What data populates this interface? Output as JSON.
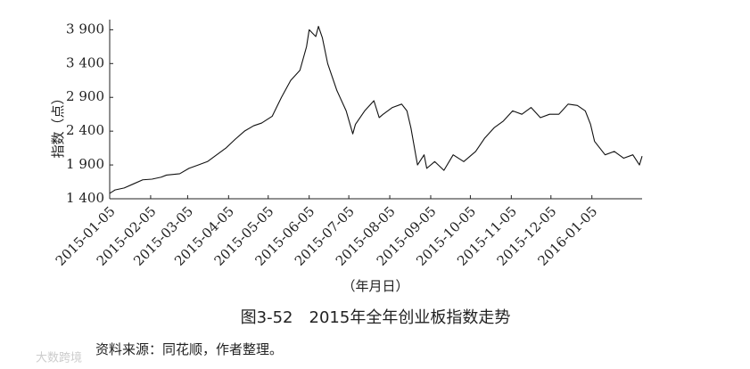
{
  "chart_data": {
    "type": "line",
    "title": "图3-52　2015年全年创业板指数走势",
    "source": "资料来源：同花顺，作者整理。",
    "watermark": "大数跨境",
    "y_label": "指数（点）",
    "x_label": "（年月日）",
    "xlim": [
      "2015-01-05",
      "2016-02-12"
    ],
    "xticks": [
      "2015-01-05",
      "2015-02-05",
      "2015-03-05",
      "2015-04-05",
      "2015-05-05",
      "2015-06-05",
      "2015-07-05",
      "2015-08-05",
      "2015-09-05",
      "2015-10-05",
      "2015-11-05",
      "2015-12-05",
      "2016-01-05"
    ],
    "ylim": [
      1400,
      4050
    ],
    "yticks": [
      {
        "value": 1400,
        "label": "1 400"
      },
      {
        "value": 1900,
        "label": "1 900"
      },
      {
        "value": 2400,
        "label": "2 400"
      },
      {
        "value": 2900,
        "label": "2 900"
      },
      {
        "value": 3400,
        "label": "3 400"
      },
      {
        "value": 3900,
        "label": "3 900"
      }
    ],
    "x": [
      "2015-01-05",
      "2015-01-09",
      "2015-01-16",
      "2015-01-23",
      "2015-01-30",
      "2015-02-06",
      "2015-02-13",
      "2015-02-17",
      "2015-02-27",
      "2015-03-06",
      "2015-03-13",
      "2015-03-20",
      "2015-03-27",
      "2015-04-03",
      "2015-04-10",
      "2015-04-17",
      "2015-04-24",
      "2015-04-30",
      "2015-05-08",
      "2015-05-15",
      "2015-05-22",
      "2015-05-29",
      "2015-06-03",
      "2015-06-05",
      "2015-06-10",
      "2015-06-12",
      "2015-06-15",
      "2015-06-19",
      "2015-06-26",
      "2015-07-03",
      "2015-07-08",
      "2015-07-10",
      "2015-07-17",
      "2015-07-24",
      "2015-07-28",
      "2015-07-31",
      "2015-08-07",
      "2015-08-14",
      "2015-08-18",
      "2015-08-21",
      "2015-08-26",
      "2015-08-31",
      "2015-09-02",
      "2015-09-08",
      "2015-09-15",
      "2015-09-22",
      "2015-09-30",
      "2015-10-09",
      "2015-10-16",
      "2015-10-23",
      "2015-10-30",
      "2015-11-06",
      "2015-11-13",
      "2015-11-20",
      "2015-11-27",
      "2015-12-04",
      "2015-12-11",
      "2015-12-18",
      "2015-12-25",
      "2015-12-31",
      "2016-01-04",
      "2016-01-07",
      "2016-01-15",
      "2016-01-22",
      "2016-01-29",
      "2016-02-05",
      "2016-02-10",
      "2016-02-12"
    ],
    "series": [
      {
        "color": "#111111",
        "values": [
          1480,
          1530,
          1560,
          1620,
          1680,
          1690,
          1720,
          1750,
          1770,
          1850,
          1900,
          1950,
          2050,
          2150,
          2280,
          2400,
          2480,
          2520,
          2620,
          2900,
          3150,
          3300,
          3650,
          3900,
          3800,
          3950,
          3780,
          3400,
          3000,
          2700,
          2360,
          2500,
          2700,
          2850,
          2600,
          2650,
          2750,
          2800,
          2700,
          2450,
          1900,
          2050,
          1850,
          1950,
          1820,
          2050,
          1950,
          2100,
          2300,
          2450,
          2550,
          2700,
          2650,
          2750,
          2600,
          2650,
          2650,
          2800,
          2780,
          2700,
          2500,
          2250,
          2050,
          2100,
          2000,
          2050,
          1900,
          2030
        ]
      }
    ]
  }
}
